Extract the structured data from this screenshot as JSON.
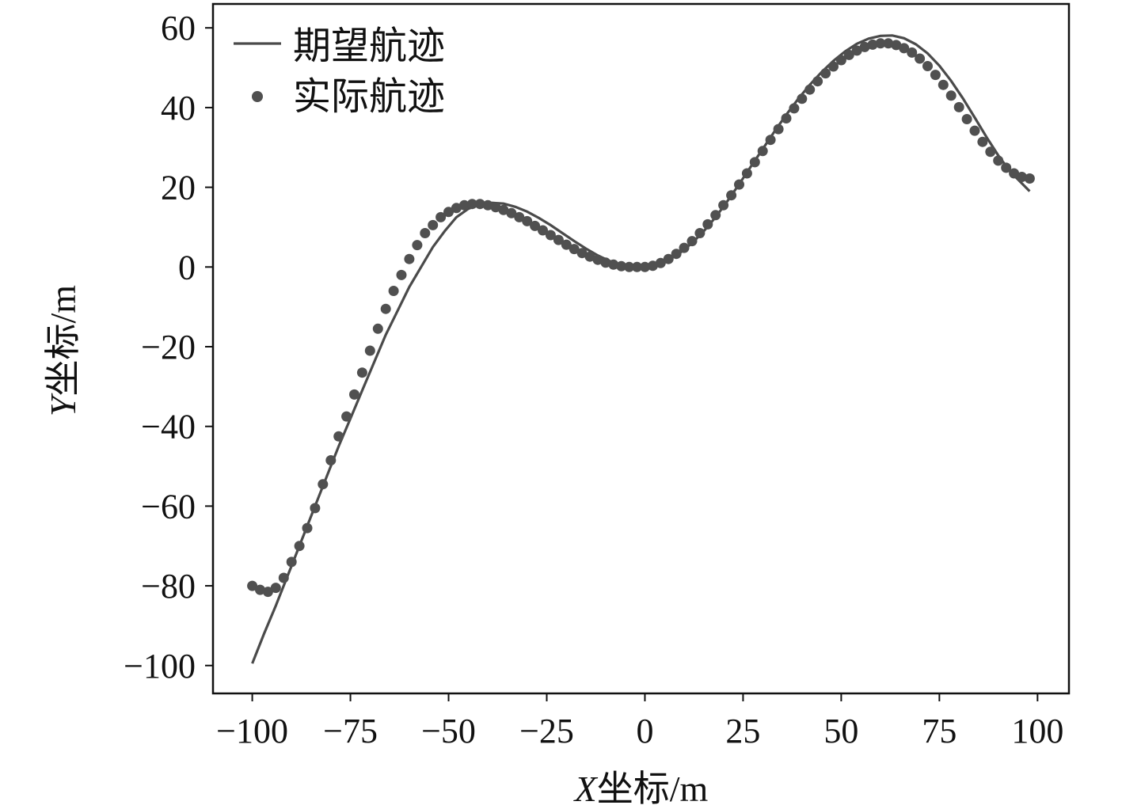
{
  "chart_data": {
    "type": "line",
    "title": "",
    "xlabel": {
      "var": "X",
      "rest": "坐标/m"
    },
    "ylabel": {
      "var": "Y",
      "rest": "坐标/m"
    },
    "xlim": [
      -110,
      108
    ],
    "ylim": [
      -107,
      66
    ],
    "xticks": [
      -100,
      -75,
      -50,
      -25,
      0,
      25,
      50,
      75,
      100
    ],
    "yticks": [
      -100,
      -80,
      -60,
      -40,
      -20,
      0,
      20,
      40,
      60
    ],
    "xtick_labels": [
      "−100",
      "−75",
      "−50",
      "−25",
      "0",
      "25",
      "50",
      "75",
      "100"
    ],
    "ytick_labels": [
      "−100",
      "−80",
      "−60",
      "−40",
      "−20",
      "0",
      "20",
      "40",
      "60"
    ],
    "grid": false,
    "legend_position": "top-left",
    "colors": {
      "desired": "#4a4a4a",
      "actual": "#505050",
      "frame": "#111111"
    },
    "series": [
      {
        "name": "期望航迹",
        "style": "line",
        "points": [
          [
            -100,
            -99.5
          ],
          [
            -97,
            -92
          ],
          [
            -94,
            -85
          ],
          [
            -90,
            -75
          ],
          [
            -86,
            -65
          ],
          [
            -82,
            -55
          ],
          [
            -78,
            -45
          ],
          [
            -75,
            -38
          ],
          [
            -72,
            -31
          ],
          [
            -69,
            -24
          ],
          [
            -66,
            -17
          ],
          [
            -63,
            -11
          ],
          [
            -60,
            -5
          ],
          [
            -57,
            0
          ],
          [
            -54,
            5
          ],
          [
            -51,
            9
          ],
          [
            -48,
            12.5
          ],
          [
            -45,
            14.6
          ],
          [
            -42,
            15.7
          ],
          [
            -39,
            16.1
          ],
          [
            -36,
            15.9
          ],
          [
            -33,
            15.1
          ],
          [
            -30,
            13.9
          ],
          [
            -27,
            12.3
          ],
          [
            -24,
            10.5
          ],
          [
            -21,
            8.5
          ],
          [
            -18,
            6.5
          ],
          [
            -15,
            4.6
          ],
          [
            -12,
            2.9
          ],
          [
            -9,
            1.5
          ],
          [
            -6,
            0.5
          ],
          [
            -3,
            0
          ],
          [
            0,
            0
          ],
          [
            3,
            0.6
          ],
          [
            6,
            1.8
          ],
          [
            9,
            3.6
          ],
          [
            12,
            6
          ],
          [
            15,
            9
          ],
          [
            18,
            12.5
          ],
          [
            21,
            16.5
          ],
          [
            24,
            20.8
          ],
          [
            27,
            25.2
          ],
          [
            30,
            29.6
          ],
          [
            33,
            34
          ],
          [
            36,
            38.2
          ],
          [
            39,
            42.1
          ],
          [
            42,
            45.7
          ],
          [
            45,
            48.9
          ],
          [
            48,
            51.7
          ],
          [
            51,
            54.1
          ],
          [
            54,
            56
          ],
          [
            57,
            57.3
          ],
          [
            60,
            58
          ],
          [
            63,
            58.1
          ],
          [
            66,
            57.4
          ],
          [
            69,
            55.9
          ],
          [
            72,
            53.6
          ],
          [
            75,
            50.5
          ],
          [
            78,
            46.7
          ],
          [
            81,
            42.3
          ],
          [
            84,
            37.5
          ],
          [
            87,
            32.6
          ],
          [
            90,
            28
          ],
          [
            93,
            24
          ],
          [
            96,
            21
          ],
          [
            98,
            19
          ]
        ]
      },
      {
        "name": "实际航迹",
        "style": "markers",
        "points": [
          [
            -100,
            -80
          ],
          [
            -98,
            -81
          ],
          [
            -96,
            -81.5
          ],
          [
            -94,
            -80.5
          ],
          [
            -92,
            -78
          ],
          [
            -90,
            -74
          ],
          [
            -88,
            -70
          ],
          [
            -86,
            -65.5
          ],
          [
            -84,
            -60.5
          ],
          [
            -82,
            -54.5
          ],
          [
            -80,
            -48.5
          ],
          [
            -78,
            -42.5
          ],
          [
            -76,
            -37.5
          ],
          [
            -74,
            -32
          ],
          [
            -72,
            -26.5
          ],
          [
            -70,
            -21
          ],
          [
            -68,
            -15.5
          ],
          [
            -66,
            -10.5
          ],
          [
            -64,
            -6
          ],
          [
            -62,
            -2
          ],
          [
            -60,
            2
          ],
          [
            -58,
            5.5
          ],
          [
            -56,
            8.5
          ],
          [
            -54,
            10.5
          ],
          [
            -52,
            12.5
          ],
          [
            -50,
            13.8
          ],
          [
            -48,
            14.8
          ],
          [
            -46,
            15.5
          ],
          [
            -44,
            15.8
          ],
          [
            -42,
            15.8
          ],
          [
            -40,
            15.5
          ],
          [
            -38,
            15
          ],
          [
            -36,
            14.3
          ],
          [
            -34,
            13.5
          ],
          [
            -32,
            12.5
          ],
          [
            -30,
            11.5
          ],
          [
            -28,
            10.3
          ],
          [
            -26,
            9.2
          ],
          [
            -24,
            8
          ],
          [
            -22,
            6.8
          ],
          [
            -20,
            5.6
          ],
          [
            -18,
            4.5
          ],
          [
            -16,
            3.5
          ],
          [
            -14,
            2.6
          ],
          [
            -12,
            1.8
          ],
          [
            -10,
            1.1
          ],
          [
            -8,
            0.6
          ],
          [
            -6,
            0.2
          ],
          [
            -4,
            0
          ],
          [
            -2,
            0
          ],
          [
            0,
            0
          ],
          [
            2,
            0.3
          ],
          [
            4,
            1
          ],
          [
            6,
            2
          ],
          [
            8,
            3.3
          ],
          [
            10,
            4.8
          ],
          [
            12,
            6.5
          ],
          [
            14,
            8.5
          ],
          [
            16,
            10.7
          ],
          [
            18,
            13
          ],
          [
            20,
            15.5
          ],
          [
            22,
            18
          ],
          [
            24,
            20.7
          ],
          [
            26,
            23.5
          ],
          [
            28,
            26.3
          ],
          [
            30,
            29.1
          ],
          [
            32,
            31.9
          ],
          [
            34,
            34.6
          ],
          [
            36,
            37.3
          ],
          [
            38,
            39.8
          ],
          [
            40,
            42.2
          ],
          [
            42,
            44.5
          ],
          [
            44,
            46.6
          ],
          [
            46,
            48.6
          ],
          [
            48,
            50.3
          ],
          [
            50,
            51.9
          ],
          [
            52,
            53.2
          ],
          [
            54,
            54.3
          ],
          [
            56,
            55.2
          ],
          [
            58,
            55.8
          ],
          [
            60,
            56.1
          ],
          [
            62,
            56.1
          ],
          [
            64,
            55.7
          ],
          [
            66,
            54.9
          ],
          [
            68,
            53.8
          ],
          [
            70,
            52.3
          ],
          [
            72,
            50.4
          ],
          [
            74,
            48.2
          ],
          [
            76,
            45.7
          ],
          [
            78,
            43
          ],
          [
            80,
            40.1
          ],
          [
            82,
            37.1
          ],
          [
            84,
            34.2
          ],
          [
            86,
            31.4
          ],
          [
            88,
            28.9
          ],
          [
            90,
            26.7
          ],
          [
            92,
            24.9
          ],
          [
            94,
            23.5
          ],
          [
            96,
            22.6
          ],
          [
            98,
            22.2
          ]
        ]
      }
    ]
  }
}
